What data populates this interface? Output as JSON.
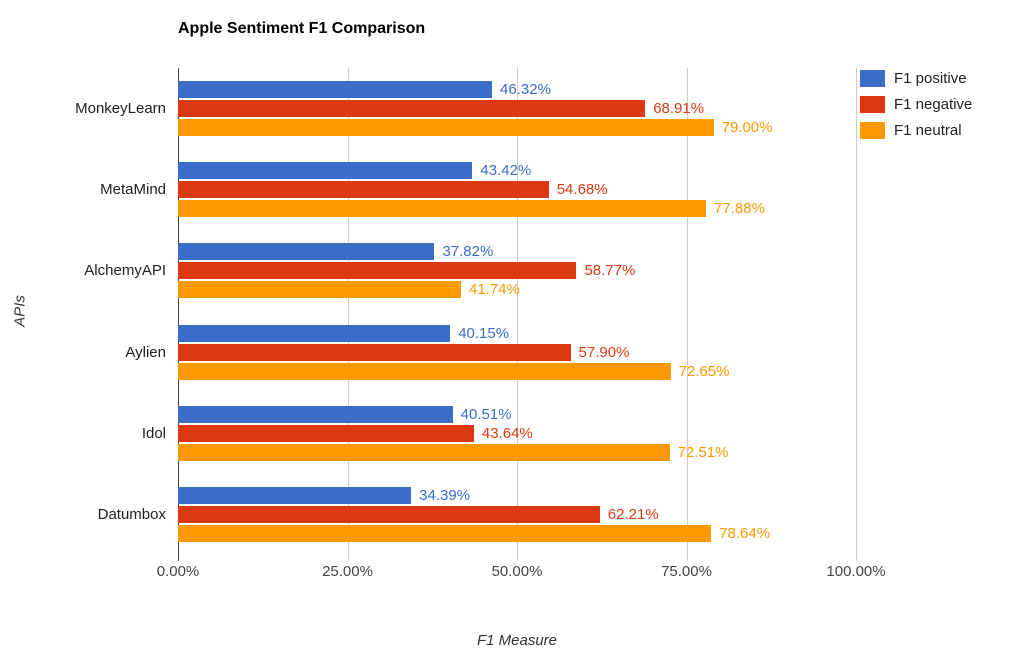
{
  "page": {
    "background": "#ffffff"
  },
  "chart_data": {
    "type": "bar",
    "orientation": "horizontal",
    "title": "Apple Sentiment F1 Comparison",
    "xlabel": "F1 Measure",
    "ylabel": "APIs",
    "categories": [
      "MonkeyLearn",
      "MetaMind",
      "AlchemyAPI",
      "Aylien",
      "Idol",
      "Datumbox"
    ],
    "series": [
      {
        "name": "F1 positive",
        "color": "#3B6CC9",
        "values": [
          46.32,
          43.42,
          37.82,
          40.15,
          40.51,
          34.39
        ]
      },
      {
        "name": "F1 negative",
        "color": "#DC3912",
        "values": [
          68.91,
          54.68,
          58.77,
          57.9,
          43.64,
          62.21
        ]
      },
      {
        "name": "F1 neutral",
        "color": "#FF9900",
        "values": [
          79.0,
          77.88,
          41.74,
          72.65,
          72.51,
          78.64
        ]
      }
    ],
    "value_label_suffix": "%",
    "value_label_decimals": 2,
    "x_tick_labels": [
      "0.00%",
      "25.00%",
      "50.00%",
      "75.00%",
      "100.00%"
    ],
    "x_tick_values": [
      0,
      25,
      50,
      75,
      100
    ],
    "xlim": [
      0,
      100
    ],
    "grid": true,
    "legend_position": "top-right"
  },
  "colors": {
    "title_text": "#000000",
    "category_text": "#212121",
    "axis_tick_text": "#444444",
    "axis_title_text": "#333333",
    "gridline": "#cccccc",
    "baseline": "#424242"
  }
}
